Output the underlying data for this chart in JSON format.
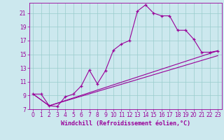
{
  "xlabel": "Windchill (Refroidissement éolien,°C)",
  "background_color": "#cce8ee",
  "line_color": "#990099",
  "grid_color": "#99cccc",
  "xlim": [
    -0.5,
    23.5
  ],
  "ylim": [
    7,
    22.5
  ],
  "xticks": [
    0,
    1,
    2,
    3,
    4,
    5,
    6,
    7,
    8,
    9,
    10,
    11,
    12,
    13,
    14,
    15,
    16,
    17,
    18,
    19,
    20,
    21,
    22,
    23
  ],
  "yticks": [
    7,
    9,
    11,
    13,
    15,
    17,
    19,
    21
  ],
  "c1x": [
    0,
    1,
    2,
    3,
    4,
    5,
    6,
    7,
    8,
    9,
    10,
    11,
    12,
    13,
    14,
    15,
    16,
    17,
    18,
    19,
    20,
    21,
    22,
    23
  ],
  "c1y": [
    9.2,
    9.2,
    7.5,
    7.4,
    8.8,
    9.2,
    10.4,
    12.7,
    10.7,
    12.6,
    15.6,
    16.5,
    17.0,
    21.3,
    22.2,
    21.0,
    20.6,
    20.6,
    18.5,
    18.5,
    17.2,
    15.3,
    15.3,
    15.5
  ],
  "c2x": [
    0,
    2,
    23
  ],
  "c2y": [
    9.2,
    7.5,
    15.5
  ],
  "c3x": [
    0,
    2,
    23
  ],
  "c3y": [
    9.2,
    7.5,
    14.8
  ],
  "xlabel_fontsize": 6,
  "tick_fontsize": 5.5
}
